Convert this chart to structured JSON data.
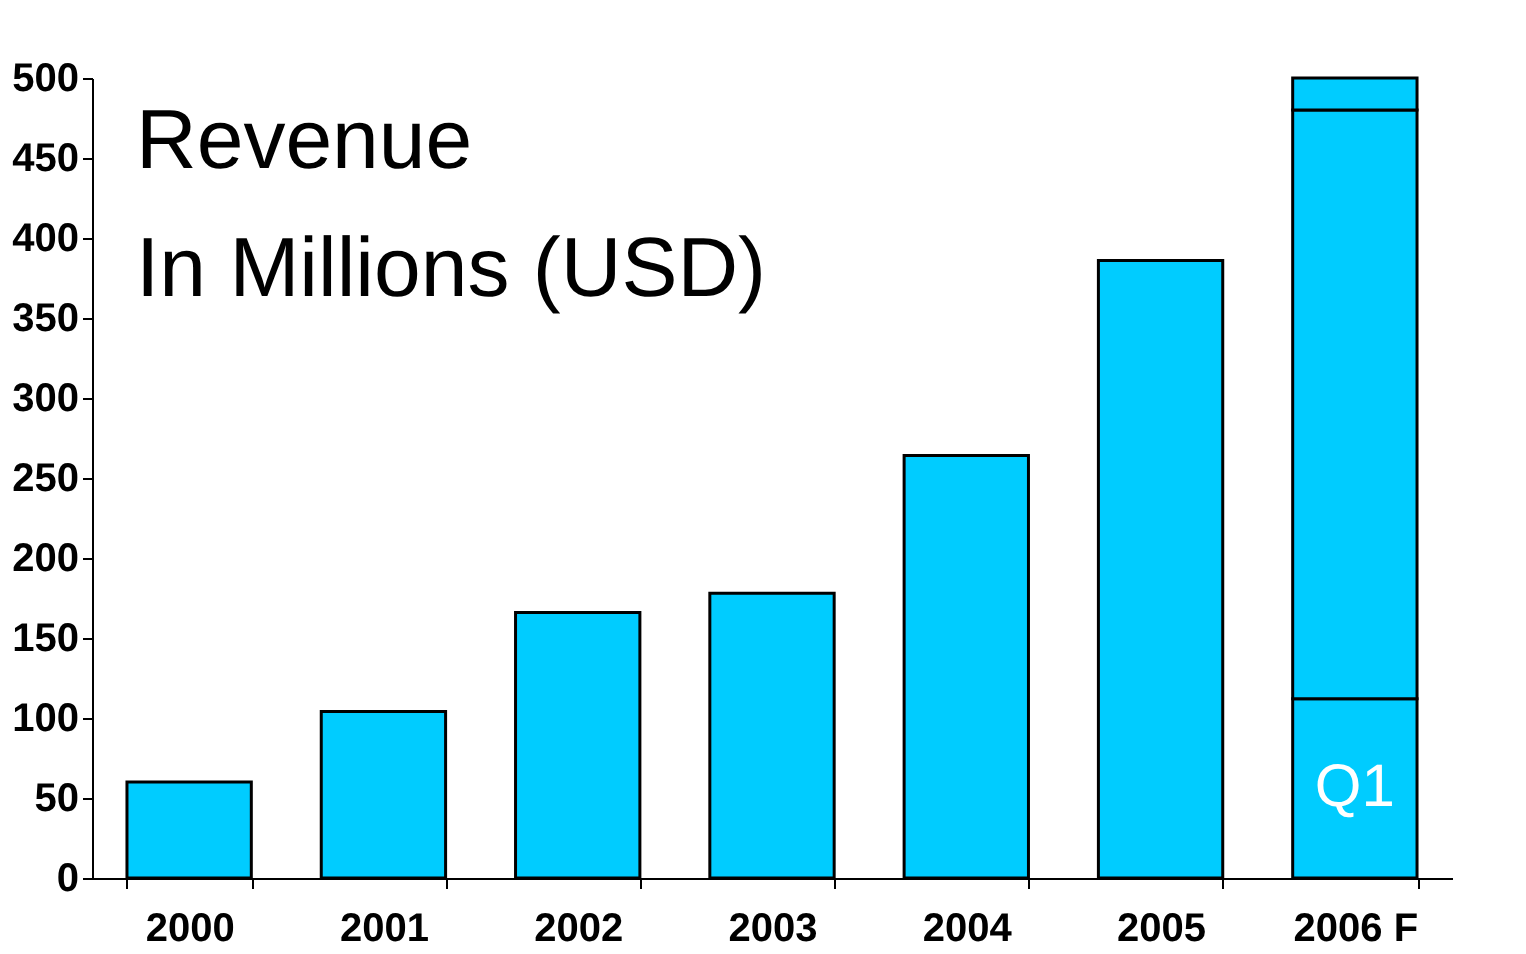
{
  "chart_data": {
    "type": "bar",
    "title": "Revenue",
    "subtitle": "In Millions (USD)",
    "categories": [
      "2000",
      "2001",
      "2002",
      "2003",
      "2004",
      "2005",
      "2006 F"
    ],
    "stacked": true,
    "series": [
      {
        "color": "#00ccff",
        "values": [
          60,
          104,
          166,
          178,
          264,
          386,
          112
        ]
      },
      {
        "color": "#00ccff",
        "values": [
          null,
          null,
          null,
          null,
          null,
          null,
          368
        ]
      },
      {
        "color": "#00ccff",
        "values": [
          null,
          null,
          null,
          null,
          null,
          null,
          20
        ]
      }
    ],
    "annotations": [
      "Q1"
    ],
    "ylim": [
      0,
      500
    ],
    "yticks": [
      0,
      50,
      100,
      150,
      200,
      250,
      300,
      350,
      400,
      450,
      500
    ],
    "grid": false,
    "legend": false
  }
}
